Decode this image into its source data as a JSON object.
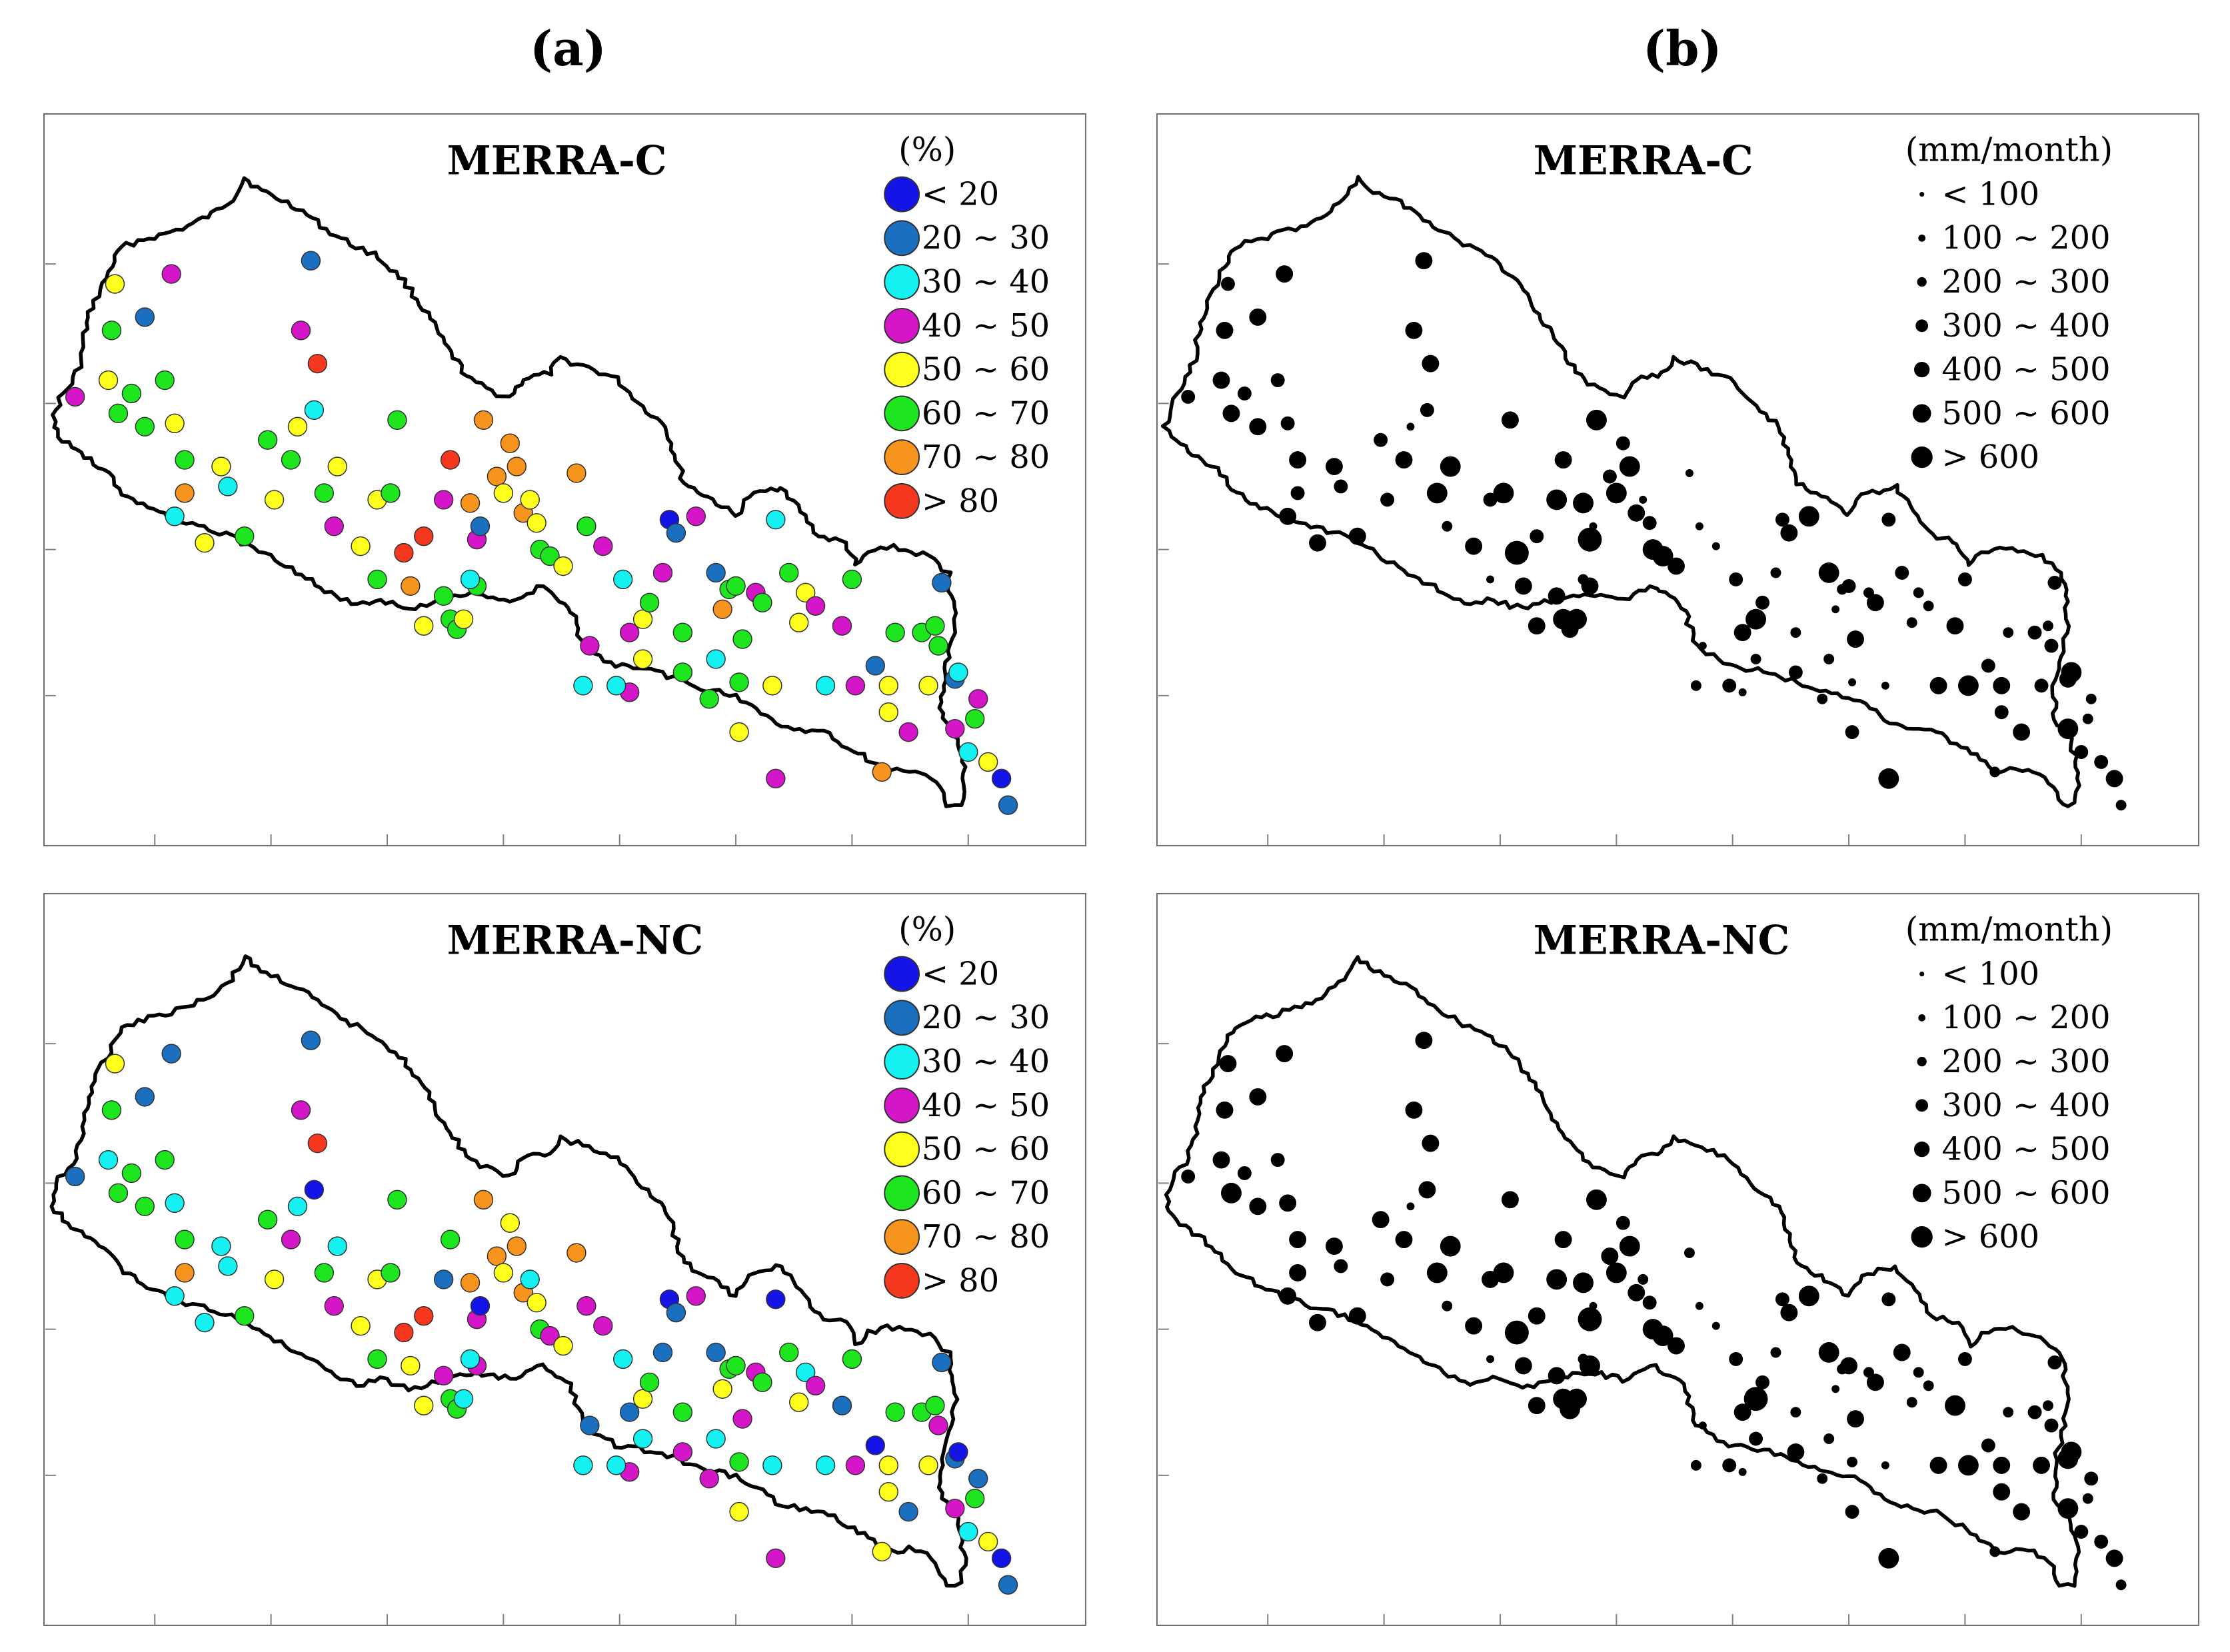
{
  "column_labels": {
    "a": "(a)",
    "b": "(b)"
  },
  "panels": {
    "a_top": {
      "title": "MERRA-C",
      "legend_unit": "(%)"
    },
    "a_bottom": {
      "title": "MERRA-NC",
      "legend_unit": "(%)"
    },
    "b_top": {
      "title": "MERRA-C",
      "legend_unit": "(mm/month)"
    },
    "b_bottom": {
      "title": "MERRA-NC",
      "legend_unit": "(mm/month)"
    }
  },
  "percent_legend": [
    {
      "label": "< 20",
      "color": "#1414e6"
    },
    {
      "label": "20 ~ 30",
      "color": "#1b6fbf"
    },
    {
      "label": "30 ~ 40",
      "color": "#15f0f0"
    },
    {
      "label": "40 ~ 50",
      "color": "#d516c8"
    },
    {
      "label": "50 ~ 60",
      "color": "#ffff1e"
    },
    {
      "label": "60 ~ 70",
      "color": "#1ee61e"
    },
    {
      "label": "70 ~ 80",
      "color": "#f7941d"
    },
    {
      "label": "> 80",
      "color": "#f5371e"
    }
  ],
  "precip_legend": [
    {
      "label": "< 100",
      "size_class": 1
    },
    {
      "label": "100 ~ 200",
      "size_class": 2
    },
    {
      "label": "200 ~ 300",
      "size_class": 3
    },
    {
      "label": "300 ~ 400",
      "size_class": 4
    },
    {
      "label": "400 ~ 500",
      "size_class": 5
    },
    {
      "label": "500 ~ 600",
      "size_class": 6
    },
    {
      "label": "> 600",
      "size_class": 7
    }
  ]
}
